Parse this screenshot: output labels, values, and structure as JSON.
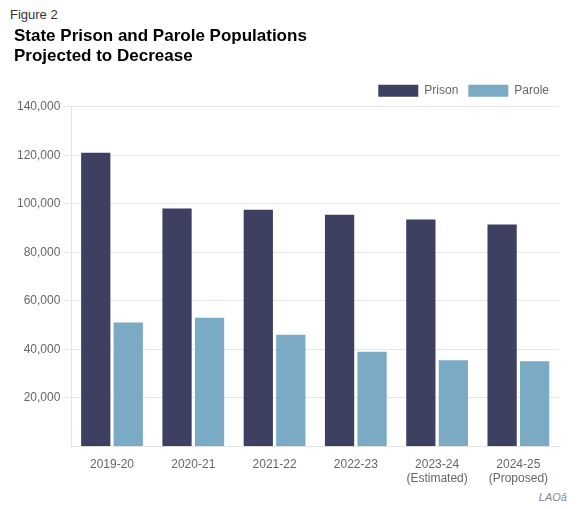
{
  "chart_data": {
    "type": "bar",
    "subtitle": "Figure 2",
    "title": "State Prison and Parole Populations\nProjected to Decrease",
    "annotations": [
      "LAOâ"
    ],
    "categories": [
      "2019-20",
      "2020-21",
      "2021-22",
      "2022-23",
      "2023-24\n(Estimated)",
      "2024-25\n(Proposed)"
    ],
    "series": [
      {
        "name": "Prison",
        "color": "#3d4060",
        "values": [
          121000,
          98000,
          97500,
          95500,
          93500,
          91500
        ]
      },
      {
        "name": "Parole",
        "color": "#7aaac4",
        "values": [
          51000,
          53000,
          46000,
          39000,
          35500,
          35000
        ]
      }
    ],
    "ylim": [
      0,
      140000
    ],
    "yticks": [
      {
        "value": 20000,
        "label": "20,000"
      },
      {
        "value": 40000,
        "label": "40,000"
      },
      {
        "value": 60000,
        "label": "60,000"
      },
      {
        "value": 80000,
        "label": "80,000"
      },
      {
        "value": 100000,
        "label": "100,000"
      },
      {
        "value": 120000,
        "label": "120,000"
      },
      {
        "value": 140000,
        "label": "140,000"
      }
    ],
    "grid": true,
    "legend": "upper right"
  }
}
